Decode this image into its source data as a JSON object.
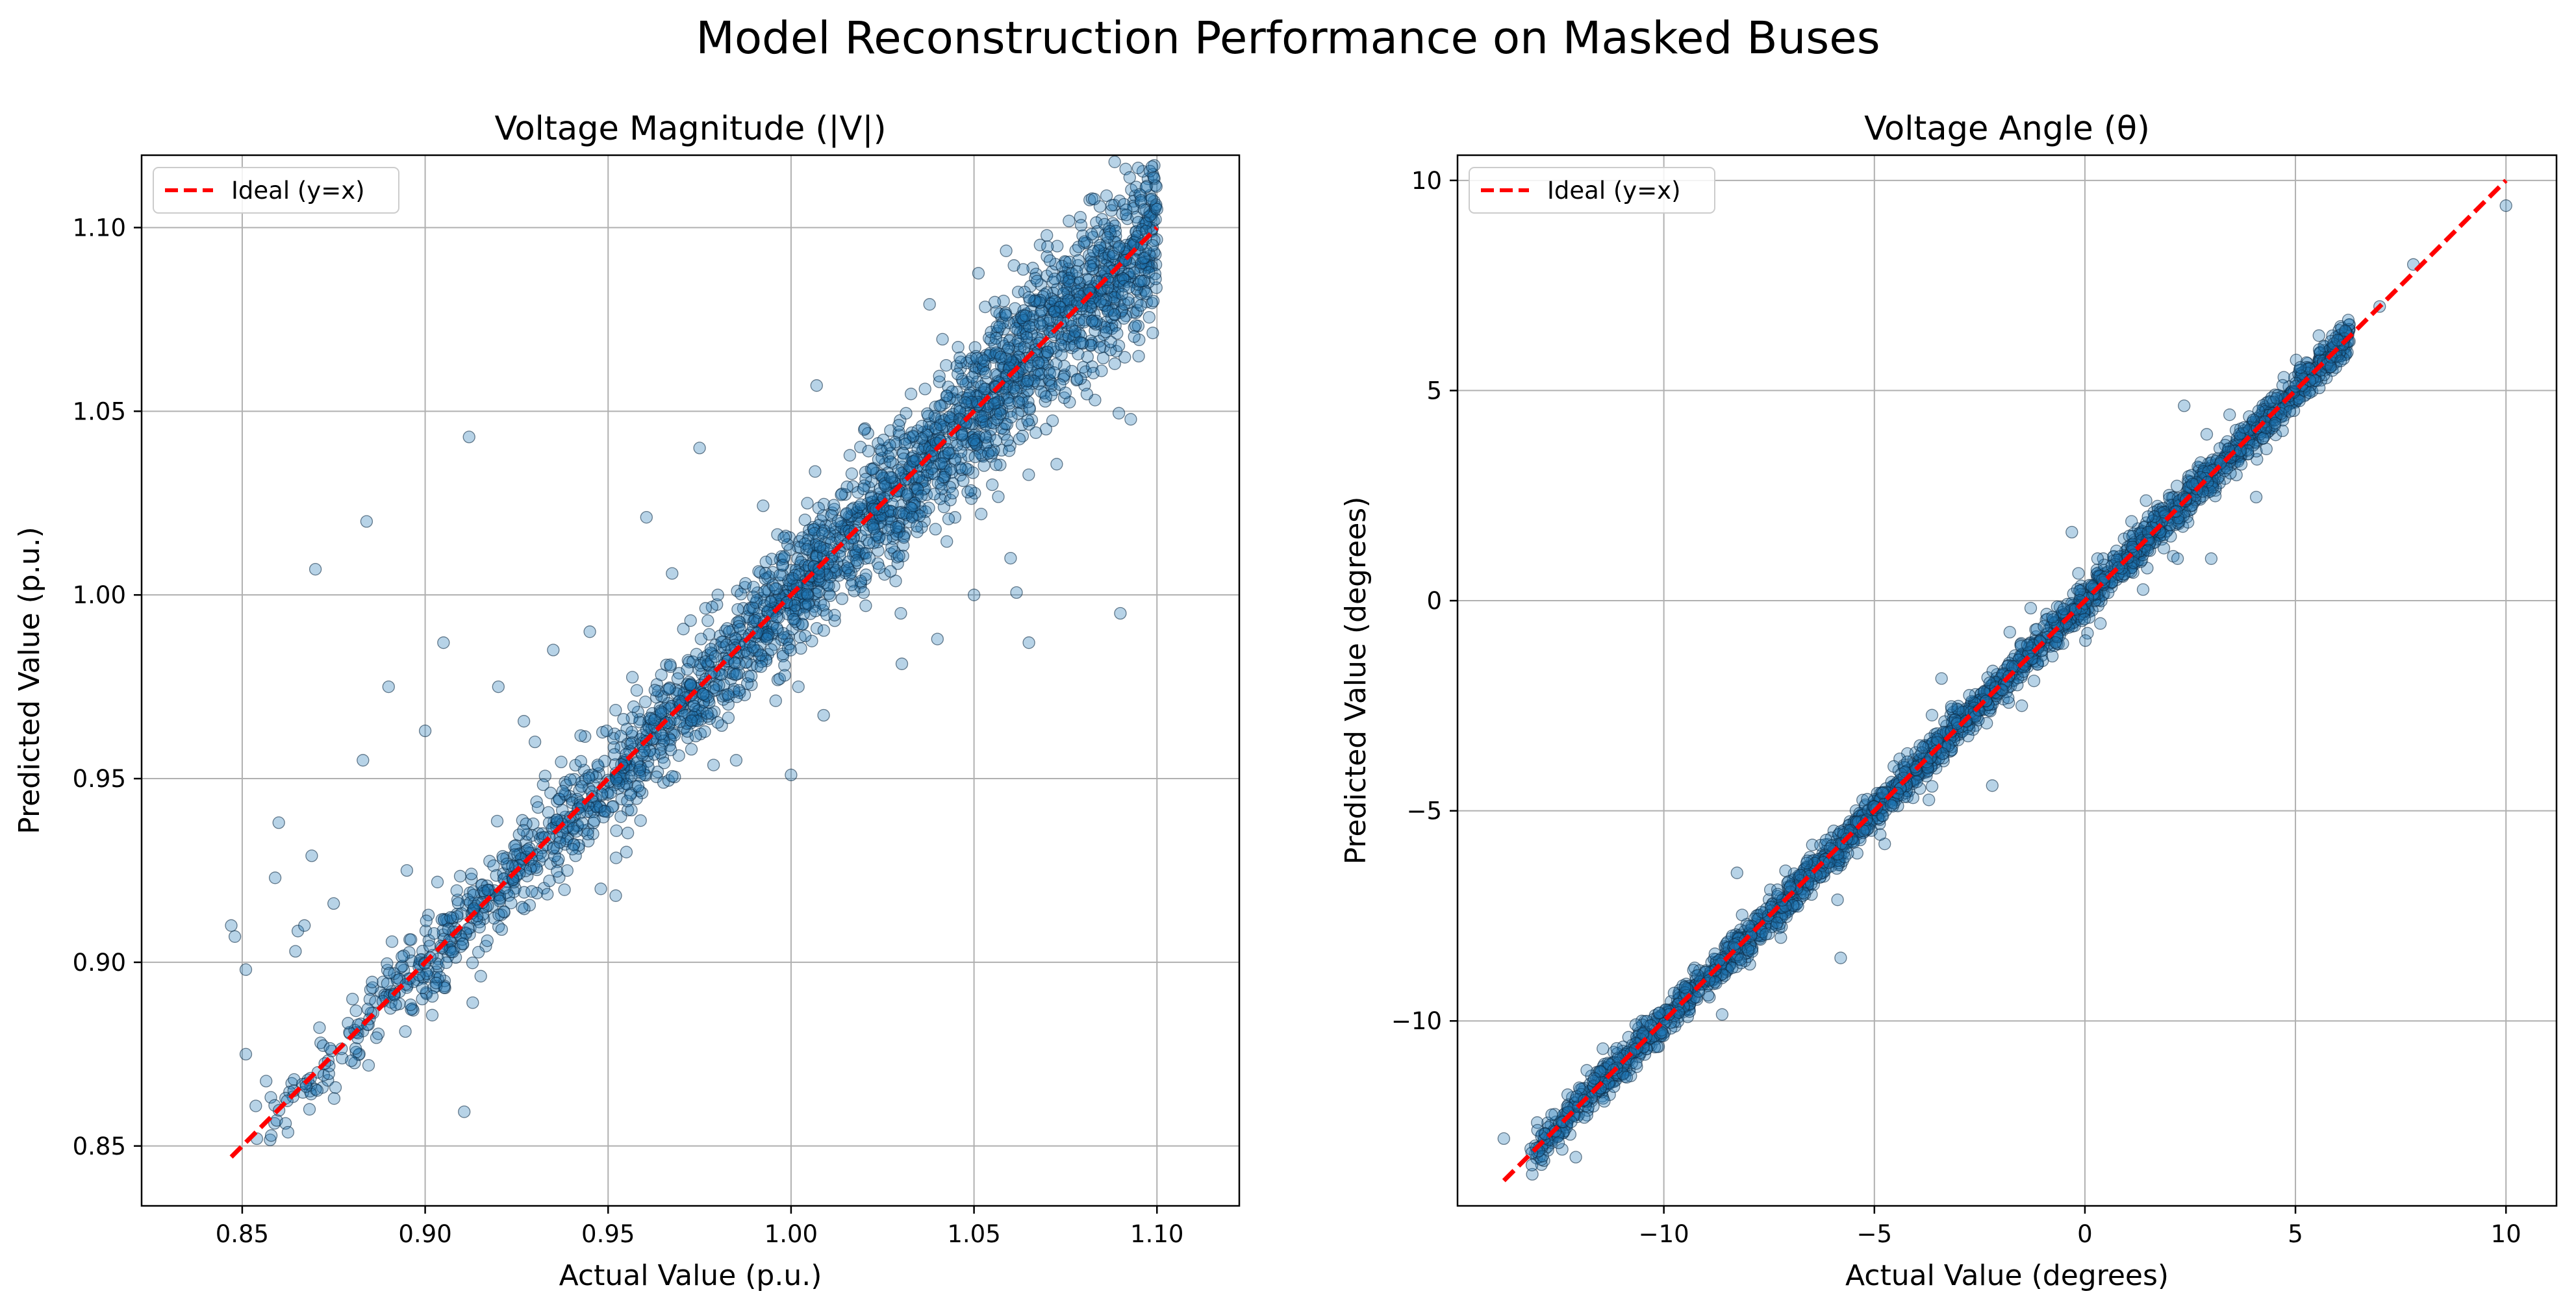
{
  "figure_title": "Model Reconstruction Performance on Masked Buses",
  "colors": {
    "point_fill": "#1f77b4",
    "point_edge": "#0d2b45",
    "ideal_line": "#ff0000",
    "grid": "#b0b0b0"
  },
  "chart_data": [
    {
      "type": "scatter",
      "title": "Voltage Magnitude (|V|)",
      "xlabel": "Actual Value (p.u.)",
      "ylabel": "Predicted Value (p.u.)",
      "xlim": [
        0.8225,
        1.1225
      ],
      "ylim": [
        0.8337,
        1.1197
      ],
      "xticks": [
        0.85,
        0.9,
        0.95,
        1.0,
        1.05,
        1.1
      ],
      "yticks": [
        0.85,
        0.9,
        0.95,
        1.0,
        1.05,
        1.1
      ],
      "xtick_labels": [
        "0.85",
        "0.90",
        "0.95",
        "1.00",
        "1.05",
        "1.10"
      ],
      "ytick_labels": [
        "0.85",
        "0.90",
        "0.95",
        "1.00",
        "1.05",
        "1.10"
      ],
      "grid": true,
      "legend_position": "upper-left",
      "series": [
        {
          "name": "Ideal (y=x)",
          "kind": "line",
          "style": "dashed",
          "x": [
            0.847,
            1.1
          ],
          "y": [
            0.847,
            1.1
          ]
        },
        {
          "kind": "scatter",
          "approx_count": 6000,
          "trend": "clustered along y = x from 0.85 to 1.10; spread widens toward the upper end",
          "representative_points": [
            [
              0.847,
              0.91
            ],
            [
              0.848,
              0.907
            ],
            [
              0.851,
              0.898
            ],
            [
              0.851,
              0.875
            ],
            [
              0.854,
              0.852
            ],
            [
              0.86,
              0.938
            ],
            [
              0.859,
              0.923
            ],
            [
              0.869,
              0.929
            ],
            [
              0.867,
              0.91
            ],
            [
              0.87,
              1.007
            ],
            [
              0.875,
              0.916
            ],
            [
              0.883,
              0.955
            ],
            [
              0.884,
              1.02
            ],
            [
              0.89,
              0.975
            ],
            [
              0.895,
              0.925
            ],
            [
              0.9,
              0.963
            ],
            [
              0.905,
              0.987
            ],
            [
              0.912,
              1.043
            ],
            [
              0.913,
              0.889
            ],
            [
              0.92,
              0.975
            ],
            [
              0.93,
              0.96
            ],
            [
              0.935,
              0.985
            ],
            [
              0.945,
              0.99
            ],
            [
              0.948,
              0.92
            ],
            [
              0.955,
              0.93
            ],
            [
              0.975,
              1.04
            ],
            [
              0.98,
              1.0
            ],
            [
              0.985,
              0.955
            ],
            [
              1.0,
              0.951
            ],
            [
              1.002,
              0.975
            ],
            [
              1.007,
              1.057
            ],
            [
              1.02,
              1.045
            ],
            [
              1.03,
              0.995
            ],
            [
              1.04,
              0.988
            ],
            [
              1.05,
              1.0
            ],
            [
              1.055,
              1.03
            ],
            [
              1.06,
              1.01
            ],
            [
              1.057,
              1.073
            ],
            [
              1.065,
              0.987
            ],
            [
              1.075,
              1.055
            ],
            [
              1.09,
              0.995
            ],
            [
              1.095,
              1.065
            ],
            [
              1.099,
              1.08
            ],
            [
              1.1,
              1.105
            ],
            [
              1.097,
              1.099
            ]
          ]
        }
      ]
    },
    {
      "type": "scatter",
      "title": "Voltage Angle (θ)",
      "xlabel": "Actual Value (degrees)",
      "ylabel": "Predicted Value (degrees)",
      "xlim": [
        -14.9,
        11.2
      ],
      "ylim": [
        -14.4,
        10.6
      ],
      "xticks": [
        -10,
        -5,
        0,
        5,
        10
      ],
      "yticks": [
        -10,
        -5,
        0,
        5,
        10
      ],
      "xtick_labels": [
        "−10",
        "−5",
        "0",
        "5",
        "10"
      ],
      "ytick_labels": [
        "−10",
        "−5",
        "0",
        "5",
        "10"
      ],
      "grid": true,
      "legend_position": "upper-left",
      "series": [
        {
          "name": "Ideal (y=x)",
          "kind": "line",
          "style": "dashed",
          "x": [
            -13.8,
            10.0
          ],
          "y": [
            -13.8,
            10.0
          ]
        },
        {
          "kind": "scatter",
          "approx_count": 6000,
          "trend": "tight band along y = x from about -13.8 to 10 degrees",
          "representative_points": [
            [
              -13.8,
              -12.8
            ],
            [
              -13.0,
              -12.6
            ],
            [
              -12.5,
              -12.9
            ],
            [
              -12.2,
              -12.4
            ],
            [
              -11.5,
              -11.6
            ],
            [
              -10.5,
              -10.3
            ],
            [
              -9.5,
              -9.2
            ],
            [
              -8.0,
              -8.3
            ],
            [
              -7.0,
              -6.8
            ],
            [
              -5.8,
              -8.5
            ],
            [
              -5.0,
              -4.9
            ],
            [
              -3.5,
              -3.3
            ],
            [
              -2.2,
              -4.4
            ],
            [
              -1.5,
              -2.5
            ],
            [
              -0.5,
              -0.2
            ],
            [
              0.3,
              1.0
            ],
            [
              1.5,
              2.0
            ],
            [
              2.2,
              1.0
            ],
            [
              2.8,
              2.6
            ],
            [
              3.0,
              1.0
            ],
            [
              4.0,
              4.3
            ],
            [
              5.0,
              5.1
            ],
            [
              6.0,
              6.2
            ],
            [
              7.0,
              7.0
            ],
            [
              7.8,
              8.0
            ],
            [
              10.0,
              9.4
            ]
          ]
        }
      ]
    }
  ]
}
